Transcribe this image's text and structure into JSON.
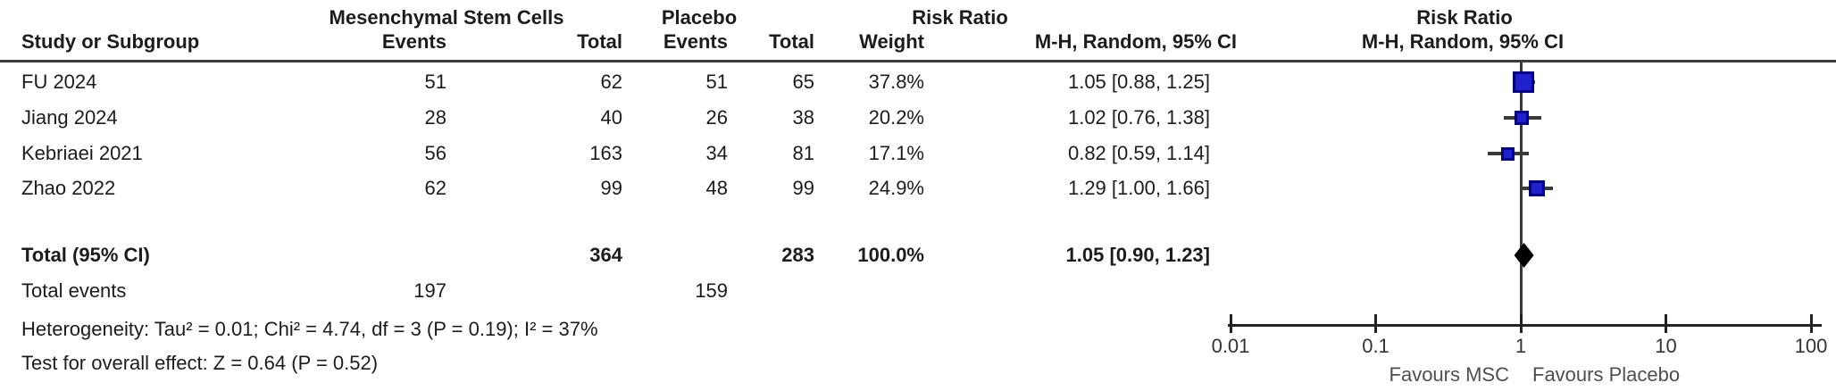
{
  "table": {
    "group_headers": {
      "experimental": "Mesenchymal Stem Cells",
      "control": "Placebo",
      "effect_stats": "Risk Ratio",
      "effect_plot": "Risk Ratio"
    },
    "column_headers": {
      "study": "Study or Subgroup",
      "events_exp": "Events",
      "total_exp": "Total",
      "events_ctrl": "Events",
      "total_ctrl": "Total",
      "weight": "Weight",
      "ci_stats": "M-H, Random, 95% CI",
      "ci_plot": "M-H, Random, 95% CI"
    },
    "total_row_label": "Total (95% CI)",
    "total_events_label": "Total events",
    "heterogeneity_line": "Heterogeneity: Tau² = 0.01; Chi² = 4.74, df = 3 (P = 0.19); I² = 37%",
    "overall_effect_line": "Test for overall effect: Z = 0.64 (P = 0.52)"
  },
  "chart_data": {
    "type": "forest",
    "effect_measure": "Risk Ratio, M-H, Random, 95% CI",
    "x_scale": "log10",
    "x_ticks": [
      "0.01",
      "0.1",
      "1",
      "10",
      "100"
    ],
    "x_range": [
      0.01,
      100
    ],
    "null_line": 1,
    "favours_left": "Favours MSC",
    "favours_right": "Favours Placebo",
    "marker_color": "#2020cc",
    "diamond_color": "#000000",
    "studies": [
      {
        "name": "FU 2024",
        "events_exp": "51",
        "total_exp": "62",
        "events_ctrl": "51",
        "total_ctrl": "65",
        "weight_pct": 37.8,
        "weight": "37.8%",
        "rr": 1.05,
        "ci_low": 0.88,
        "ci_high": 1.25,
        "ci_label": "1.05 [0.88, 1.25]"
      },
      {
        "name": "Jiang 2024",
        "events_exp": "28",
        "total_exp": "40",
        "events_ctrl": "26",
        "total_ctrl": "38",
        "weight_pct": 20.2,
        "weight": "20.2%",
        "rr": 1.02,
        "ci_low": 0.76,
        "ci_high": 1.38,
        "ci_label": "1.02 [0.76, 1.38]"
      },
      {
        "name": "Kebriaei 2021",
        "events_exp": "56",
        "total_exp": "163",
        "events_ctrl": "34",
        "total_ctrl": "81",
        "weight_pct": 17.1,
        "weight": "17.1%",
        "rr": 0.82,
        "ci_low": 0.59,
        "ci_high": 1.14,
        "ci_label": "0.82 [0.59, 1.14]"
      },
      {
        "name": "Zhao 2022",
        "events_exp": "62",
        "total_exp": "99",
        "events_ctrl": "48",
        "total_ctrl": "99",
        "weight_pct": 24.9,
        "weight": "24.9%",
        "rr": 1.29,
        "ci_low": 1.0,
        "ci_high": 1.66,
        "ci_label": "1.29 [1.00, 1.66]"
      }
    ],
    "total": {
      "total_exp": "364",
      "total_ctrl": "283",
      "weight": "100.0%",
      "rr": 1.05,
      "ci_low": 0.9,
      "ci_high": 1.23,
      "ci_label": "1.05 [0.90, 1.23]"
    },
    "total_events": {
      "exp": "197",
      "ctrl": "159"
    }
  }
}
